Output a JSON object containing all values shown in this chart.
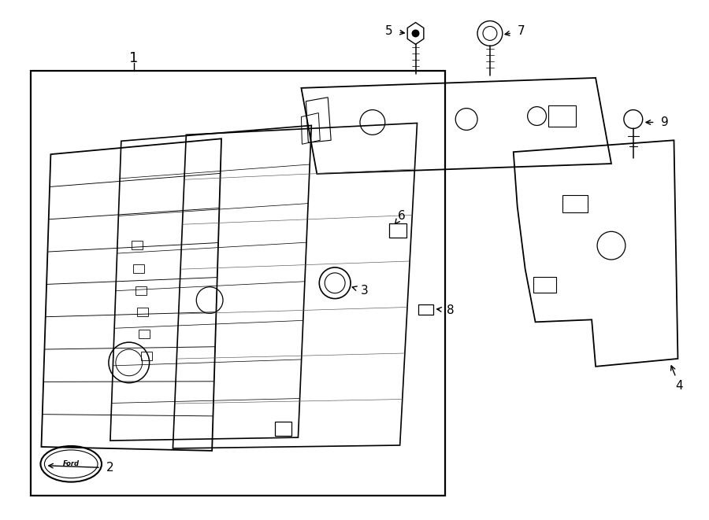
{
  "bg_color": "#ffffff",
  "line_color": "#000000",
  "fig_width": 9.0,
  "fig_height": 6.61,
  "dpi": 100
}
